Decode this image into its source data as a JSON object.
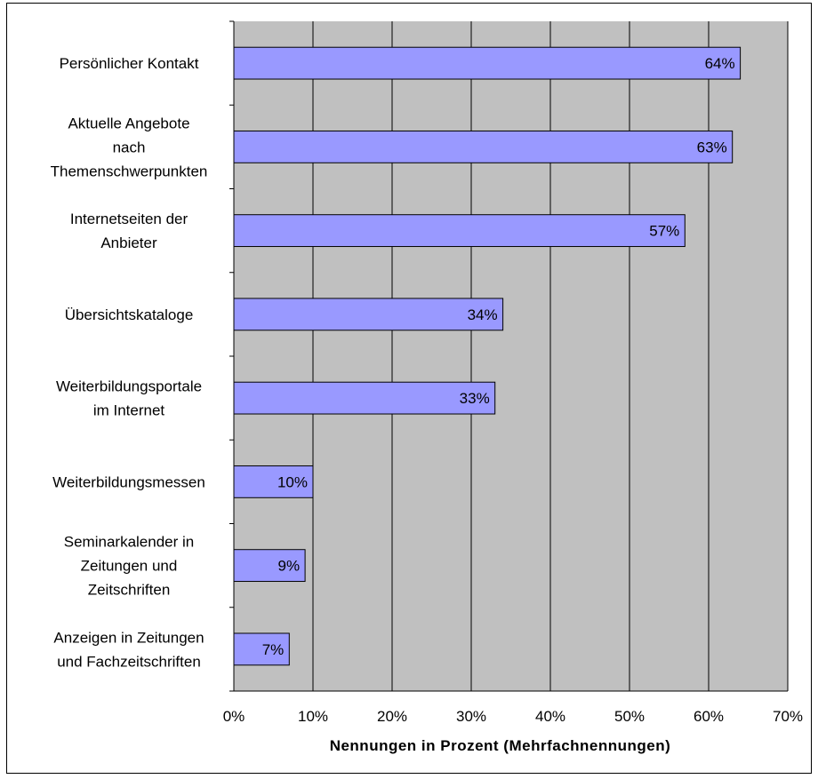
{
  "chart_data": {
    "type": "bar",
    "orientation": "horizontal",
    "categories": [
      [
        "Persönlicher Kontakt"
      ],
      [
        "Aktuelle Angebote",
        "nach",
        "Themenschwerpunkten"
      ],
      [
        "Internetseiten der",
        "Anbieter"
      ],
      [
        "Übersichtskataloge"
      ],
      [
        "Weiterbildungsportale",
        "im Internet"
      ],
      [
        "Weiterbildungsmessen"
      ],
      [
        "Seminarkalender in",
        "Zeitungen und",
        "Zeitschriften"
      ],
      [
        "Anzeigen in Zeitungen",
        "und Fachzeitschriften"
      ]
    ],
    "values": [
      64,
      63,
      57,
      34,
      33,
      10,
      9,
      7
    ],
    "data_labels": [
      "64%",
      "63%",
      "57%",
      "34%",
      "33%",
      "10%",
      "9%",
      "7%"
    ],
    "x_ticks": [
      "0%",
      "10%",
      "20%",
      "30%",
      "40%",
      "50%",
      "60%",
      "70%"
    ],
    "xlim": [
      0,
      70
    ],
    "xlabel": "Nennungen in Prozent (Mehrfachnennungen)",
    "ylabel": "",
    "title": "",
    "grid": "vertical",
    "legend": "none",
    "colors": {
      "plot_background": "#c0c0c0",
      "bar_fill": "#9999ff",
      "bar_stroke": "#000000",
      "gridline": "#000000"
    }
  }
}
